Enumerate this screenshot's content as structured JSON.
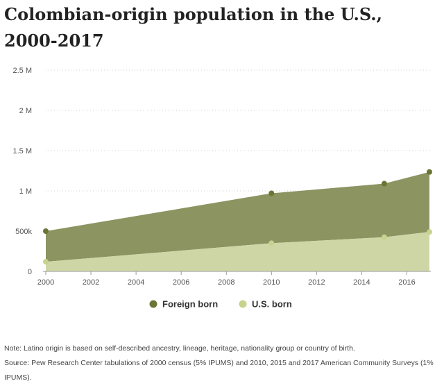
{
  "title": "Colombian-origin population in the U.S., 2000-2017",
  "chart_data": {
    "type": "area",
    "stacked": true,
    "x": [
      2000,
      2010,
      2015,
      2017
    ],
    "series": [
      {
        "name": "U.S. born",
        "values": [
          120000,
          350000,
          425000,
          490000
        ],
        "color": "#cfd6a6"
      },
      {
        "name": "Foreign born",
        "values": [
          380000,
          620000,
          665000,
          745000
        ],
        "color": "#8c9462"
      }
    ],
    "totals": [
      500000,
      970000,
      1090000,
      1235000
    ],
    "point_colors": {
      "U.S. born": "#c8d28f",
      "Foreign born": "#6b7535"
    },
    "xlim": [
      2000,
      2017
    ],
    "ylim": [
      0,
      2500000
    ],
    "x_ticks": [
      2000,
      2002,
      2004,
      2006,
      2008,
      2010,
      2012,
      2014,
      2016
    ],
    "y_ticks": [
      0,
      500000,
      1000000,
      1500000,
      2000000,
      2500000
    ],
    "y_tick_labels": [
      "0",
      "500k",
      "1 M",
      "1.5 M",
      "2 M",
      "2.5 M"
    ],
    "grid": true,
    "legend": "bottom"
  },
  "legend": [
    {
      "label": "Foreign born",
      "color": "#6b7535"
    },
    {
      "label": "U.S. born",
      "color": "#c8d28f"
    }
  ],
  "notes": {
    "note": "Note: Latino origin is based on self-described ancestry, lineage, heritage, nationality group or country of birth.",
    "source": "Source: Pew Research Center tabulations of 2000 census (5% IPUMS) and 2010, 2015 and 2017 American Community Surveys (1% IPUMS)."
  }
}
